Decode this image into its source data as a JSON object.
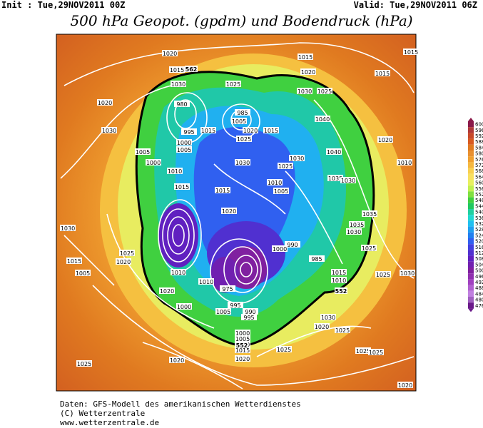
{
  "header": {
    "init": "Init : Tue,29NOV2011 00Z",
    "valid": "Valid: Tue,29NOV2011 06Z",
    "title": "500 hPa Geopot. (gpdm) und Bodendruck (hPa)"
  },
  "map": {
    "isobar_labels": [
      1020,
      1015,
      1015,
      1020,
      1015,
      1020,
      1030,
      1005,
      1000,
      1025,
      1030,
      1025,
      1040,
      1040,
      1035,
      1030,
      1010,
      1020,
      1015,
      1020,
      1025,
      1015,
      1010,
      1015,
      1020,
      1030,
      1025,
      1030,
      1010,
      1005,
      1015,
      1035,
      1030,
      1025,
      1030,
      1025,
      1020,
      1015,
      1005,
      1010,
      1020,
      1010,
      975,
      1000,
      1005,
      995,
      990,
      995,
      1000,
      1005,
      1010,
      1015,
      1020,
      1025,
      1020,
      1025,
      1030,
      1025,
      1025,
      1020,
      1020,
      1015,
      1010,
      985,
      990,
      1000,
      1025,
      1030,
      1030,
      985,
      1005,
      980,
      995,
      1000,
      1005,
      1025,
      1035,
      1015
    ],
    "height_labels": [
      562,
      552,
      552
    ]
  },
  "colorbar": {
    "values": [
      600,
      596,
      592,
      588,
      584,
      580,
      576,
      572,
      568,
      564,
      560,
      556,
      552,
      548,
      544,
      540,
      536,
      532,
      528,
      524,
      520,
      516,
      512,
      508,
      504,
      500,
      496,
      492,
      488,
      484,
      480,
      476
    ],
    "colors": [
      "#8b1a4a",
      "#b03a3a",
      "#c84a2a",
      "#d85a20",
      "#e07a20",
      "#e89030",
      "#f0a030",
      "#f5b840",
      "#f8d050",
      "#f8e060",
      "#e8f060",
      "#c0f050",
      "#80e040",
      "#40d040",
      "#20c860",
      "#20d0a0",
      "#20d8d0",
      "#20c0f0",
      "#20a0f0",
      "#2080f0",
      "#3060f0",
      "#4040e0",
      "#5030d0",
      "#6020c0",
      "#7020b0",
      "#8020a0",
      "#9030b0",
      "#a040c0",
      "#b060d0",
      "#c080e0",
      "#a060c0",
      "#6a1a8a"
    ]
  },
  "footer": {
    "lines": [
      "Daten: GFS-Modell des amerikanischen Wetterdienstes",
      "(C) Wetterzentrale",
      "www.wetterzentrale.de"
    ]
  }
}
